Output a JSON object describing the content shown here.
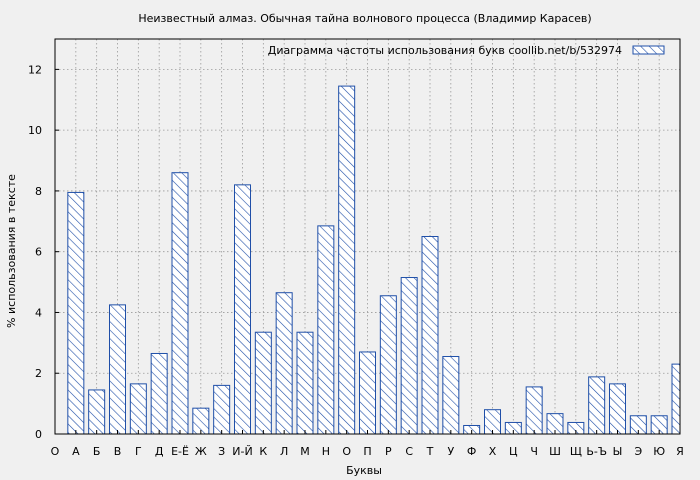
{
  "chart_data": {
    "type": "bar",
    "title": "Неизвестный алмаз. Обычная тайна волнового процесса (Владимир Карасев)",
    "xlabel": "Буквы",
    "ylabel": "% использования в тексте",
    "legend": {
      "label": "Диаграмма частоты использования букв  coollib.net/b/532974",
      "placement": "top-right"
    },
    "ylim": [
      0,
      13
    ],
    "yticks": [
      0,
      2,
      4,
      6,
      8,
      10,
      12
    ],
    "grid": true,
    "colors": {
      "background": "#f0f0f0",
      "bar_stroke": "#1f4fa8",
      "hatch": "#1f4fa8",
      "grid": "#999999"
    },
    "categories": [
      "О",
      "А",
      "Б",
      "В",
      "Г",
      "Д",
      "Е-Ё",
      "Ж",
      "З",
      "И-Й",
      "К",
      "Л",
      "М",
      "Н",
      "О",
      "П",
      "Р",
      "С",
      "Т",
      "У",
      "Ф",
      "Х",
      "Ц",
      "Ч",
      "Ш",
      "Щ",
      "Ь-Ъ",
      "Ы",
      "Э",
      "Ю",
      "Я"
    ],
    "values": [
      null,
      7.95,
      1.45,
      4.25,
      1.65,
      2.65,
      8.6,
      0.85,
      1.6,
      8.2,
      3.35,
      4.65,
      3.35,
      6.85,
      11.45,
      2.7,
      4.55,
      5.15,
      6.5,
      2.55,
      0.28,
      0.8,
      0.38,
      1.55,
      0.67,
      0.38,
      1.88,
      1.65,
      0.6,
      0.6,
      2.3
    ]
  }
}
